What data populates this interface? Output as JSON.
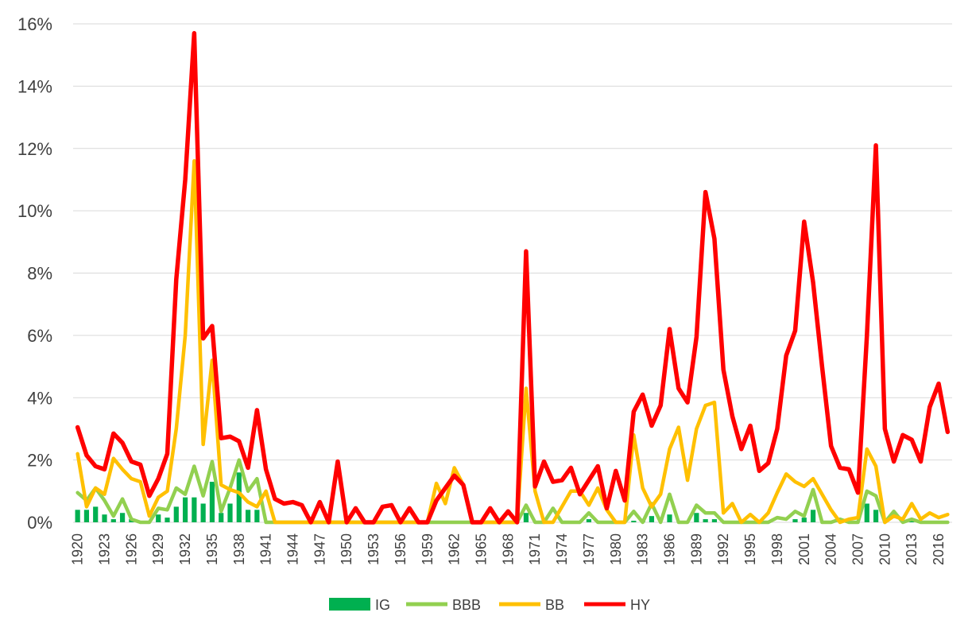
{
  "chart_data": {
    "type": "line",
    "title": "",
    "xlabel": "",
    "ylabel": "",
    "ylim": [
      0,
      16
    ],
    "y_unit": "%",
    "yticks": [
      "0%",
      "2%",
      "4%",
      "6%",
      "8%",
      "10%",
      "12%",
      "14%",
      "16%"
    ],
    "x": [
      1920,
      1921,
      1922,
      1923,
      1924,
      1925,
      1926,
      1927,
      1928,
      1929,
      1930,
      1931,
      1932,
      1933,
      1934,
      1935,
      1936,
      1937,
      1938,
      1939,
      1940,
      1941,
      1942,
      1943,
      1944,
      1945,
      1946,
      1947,
      1948,
      1949,
      1950,
      1951,
      1952,
      1953,
      1954,
      1955,
      1956,
      1957,
      1958,
      1959,
      1960,
      1961,
      1962,
      1963,
      1964,
      1965,
      1966,
      1967,
      1968,
      1969,
      1970,
      1971,
      1972,
      1973,
      1974,
      1975,
      1976,
      1977,
      1978,
      1979,
      1980,
      1981,
      1982,
      1983,
      1984,
      1985,
      1986,
      1987,
      1988,
      1989,
      1990,
      1991,
      1992,
      1993,
      1994,
      1995,
      1996,
      1997,
      1998,
      1999,
      2000,
      2001,
      2002,
      2003,
      2004,
      2005,
      2006,
      2007,
      2008,
      2009,
      2010,
      2011,
      2012,
      2013,
      2014,
      2015,
      2016,
      2017
    ],
    "xtick_labels": [
      "1920",
      "1923",
      "1926",
      "1929",
      "1932",
      "1935",
      "1938",
      "1941",
      "1944",
      "1947",
      "1950",
      "1953",
      "1956",
      "1959",
      "1962",
      "1965",
      "1968",
      "1971",
      "1974",
      "1977",
      "1980",
      "1983",
      "1986",
      "1989",
      "1992",
      "1995",
      "1998",
      "2001",
      "2004",
      "2007",
      "2010",
      "2013",
      "2016"
    ],
    "legend_position": "bottom",
    "series": [
      {
        "name": "IG",
        "kind": "bar",
        "color": "#00b050",
        "values": [
          0.4,
          0.4,
          0.5,
          0.25,
          0.1,
          0.3,
          0.1,
          0,
          0,
          0.25,
          0.15,
          0.5,
          0.8,
          0.8,
          0.6,
          1.3,
          0.3,
          0.6,
          1.6,
          0.4,
          0.4,
          0,
          0,
          0,
          0,
          0,
          0,
          0,
          0,
          0,
          0,
          0,
          0,
          0,
          0,
          0,
          0,
          0,
          0,
          0,
          0,
          0,
          0,
          0,
          0,
          0,
          0,
          0,
          0,
          0,
          0.3,
          0,
          0,
          0,
          0,
          0,
          0,
          0.1,
          0,
          0,
          0,
          0,
          0.05,
          0.1,
          0.2,
          0,
          0.25,
          0,
          0,
          0.3,
          0.1,
          0.1,
          0,
          0,
          0,
          0,
          0,
          0,
          0,
          0,
          0.1,
          0.15,
          0.4,
          0,
          0,
          0.1,
          0,
          0,
          0.6,
          0.4,
          0,
          0,
          0,
          0.1,
          0,
          0,
          0,
          0
        ]
      },
      {
        "name": "BBB",
        "kind": "line",
        "color": "#92d050",
        "values": [
          0.95,
          0.7,
          1.1,
          0.7,
          0.2,
          0.75,
          0.1,
          0,
          0,
          0.45,
          0.4,
          1.1,
          0.9,
          1.8,
          0.85,
          1.95,
          0.35,
          1.1,
          2.0,
          1.0,
          1.4,
          0,
          0,
          0,
          0,
          0,
          0,
          0,
          0,
          0,
          0,
          0,
          0,
          0,
          0,
          0,
          0,
          0,
          0,
          0,
          0,
          0,
          0,
          0,
          0,
          0,
          0,
          0,
          0,
          0,
          0.55,
          0,
          0,
          0.45,
          0,
          0,
          0,
          0.3,
          0,
          0,
          0,
          0,
          0.35,
          0,
          0.6,
          0,
          0.9,
          0,
          0,
          0.55,
          0.3,
          0.3,
          0,
          0,
          0,
          0,
          0,
          0,
          0.15,
          0.1,
          0.35,
          0.2,
          1.05,
          0,
          0,
          0.1,
          0,
          0,
          1.0,
          0.85,
          0,
          0.35,
          0,
          0.1,
          0,
          0,
          0,
          0
        ]
      },
      {
        "name": "BB",
        "kind": "line",
        "color": "#ffc000",
        "values": [
          2.2,
          0.5,
          1.1,
          0.9,
          2.05,
          1.7,
          1.4,
          1.3,
          0.2,
          0.8,
          1.0,
          3.0,
          6.0,
          11.6,
          2.5,
          5.2,
          1.2,
          1.05,
          0.95,
          0.65,
          0.5,
          1.0,
          0,
          0,
          0,
          0,
          0,
          0,
          0,
          0,
          0,
          0,
          0,
          0,
          0,
          0,
          0,
          0,
          0,
          0,
          1.25,
          0.6,
          1.75,
          1.2,
          0,
          0,
          0,
          0,
          0,
          0,
          4.3,
          1.0,
          0,
          0,
          0.5,
          1.0,
          1.0,
          0.55,
          1.1,
          0.4,
          0,
          0,
          2.8,
          1.1,
          0.5,
          0.9,
          2.35,
          3.05,
          1.35,
          3.0,
          3.75,
          3.85,
          0.3,
          0.6,
          0,
          0.25,
          0,
          0.3,
          0.95,
          1.55,
          1.3,
          1.15,
          1.4,
          0.9,
          0.4,
          0,
          0.1,
          0.15,
          2.35,
          1.8,
          0,
          0.2,
          0.1,
          0.6,
          0.1,
          0.3,
          0.15,
          0.25
        ]
      },
      {
        "name": "HY",
        "kind": "line",
        "color": "#ff0000",
        "values": [
          3.05,
          2.15,
          1.8,
          1.7,
          2.85,
          2.55,
          1.95,
          1.85,
          0.85,
          1.4,
          2.2,
          7.8,
          11.0,
          15.7,
          5.9,
          6.3,
          2.7,
          2.75,
          2.6,
          1.75,
          3.6,
          1.7,
          0.75,
          0.6,
          0.65,
          0.55,
          0,
          0.65,
          0,
          1.95,
          0,
          0.45,
          0,
          0,
          0.5,
          0.55,
          0,
          0.45,
          0,
          0,
          0.7,
          1.1,
          1.5,
          1.2,
          0,
          0,
          0.45,
          0,
          0.35,
          0,
          8.7,
          1.15,
          1.95,
          1.3,
          1.35,
          1.75,
          0.9,
          1.35,
          1.8,
          0.45,
          1.65,
          0.7,
          3.55,
          4.1,
          3.1,
          3.75,
          6.2,
          4.3,
          3.85,
          5.95,
          10.6,
          9.1,
          4.9,
          3.4,
          2.35,
          3.1,
          1.65,
          1.9,
          3.0,
          5.35,
          6.15,
          9.65,
          7.7,
          5.0,
          2.45,
          1.75,
          1.7,
          0.95,
          6.0,
          12.1,
          3.0,
          1.95,
          2.8,
          2.65,
          1.95,
          3.7,
          4.45,
          2.9
        ]
      }
    ]
  }
}
